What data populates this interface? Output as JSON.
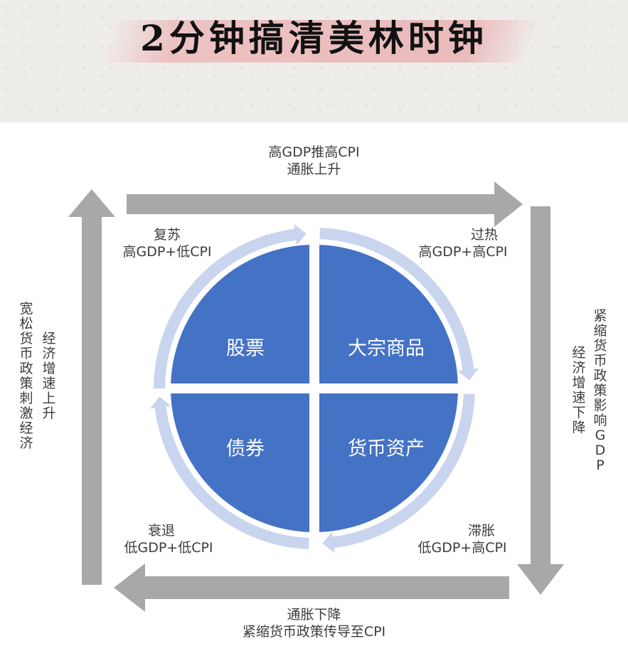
{
  "title": "2分钟搞清美林时钟",
  "top": {
    "line1": "高GDP推高CPI",
    "line2": "通胀上升"
  },
  "bottom": {
    "line1": "通胀下降",
    "line2": "紧缩货币政策传导至CPI"
  },
  "left": {
    "col1": "宽松货币政策刺激经济",
    "col2": "经济增速上升"
  },
  "right": {
    "col1": "紧缩货币政策影响GDP",
    "col2": "经济增速下降"
  },
  "phases": {
    "recovery": {
      "name": "复苏",
      "cond": "高GDP+低CPI"
    },
    "overheat": {
      "name": "过热",
      "cond": "高GDP+高CPI"
    },
    "recession": {
      "name": "衰退",
      "cond": "低GDP+低CPI"
    },
    "stagflation": {
      "name": "滞胀",
      "cond": "低GDP+高CPI"
    }
  },
  "assets": {
    "top_left": "股票",
    "top_right": "大宗商品",
    "bottom_left": "债券",
    "bottom_right": "货币资产"
  },
  "colors": {
    "quadrant": "#4472c4",
    "ring": "#c9d5ee",
    "arrow": "#a8a8a8"
  }
}
